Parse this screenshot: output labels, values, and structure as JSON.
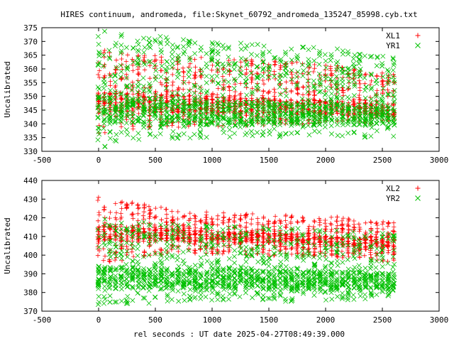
{
  "figure": {
    "title": "HIRES continuum, andromeda, file:Skynet_60792_andromeda_135247_85998.cyb.txt",
    "xlabel": "rel seconds : UT date 2025-04-27T08:49:39.000"
  },
  "colors": {
    "red": "#ff0000",
    "green": "#00c000",
    "frame": "#000000"
  },
  "chart_data": [
    {
      "type": "scatter",
      "title": "HIRES continuum, andromeda, file:Skynet_60792_andromeda_135247_85998.cyb.txt",
      "xlabel": "",
      "ylabel": "Uncalibrated",
      "xlim": [
        -500,
        3000
      ],
      "ylim": [
        330,
        375
      ],
      "xticks": [
        -500,
        0,
        500,
        1000,
        1500,
        2000,
        2500,
        3000
      ],
      "yticks": [
        330,
        335,
        340,
        345,
        350,
        355,
        360,
        365,
        370,
        375
      ],
      "legend": "top-right",
      "grid": false,
      "series": [
        {
          "name": "XL1",
          "marker": "plus",
          "color": "#ff0000",
          "data_description_values": {
            "x_start": 0,
            "x_end": 2600,
            "cluster_period": 50,
            "upper_envelope": [
              [
                0,
                367
              ],
              [
                300,
                366
              ],
              [
                1000,
                364
              ],
              [
                2000,
                362
              ],
              [
                2600,
                358
              ]
            ],
            "lower_envelope": [
              [
                0,
                336
              ],
              [
                300,
                338
              ],
              [
                1000,
                339
              ],
              [
                2000,
                340
              ],
              [
                2600,
                340
              ]
            ],
            "dense_band": [
              [
                0,
                348
              ],
              [
                1000,
                347
              ],
              [
                2600,
                345
              ]
            ]
          }
        },
        {
          "name": "YR1",
          "marker": "x",
          "color": "#00c000",
          "data_description_values": {
            "x_start": 0,
            "x_end": 2600,
            "cluster_period": 50,
            "upper_envelope": [
              [
                0,
                374
              ],
              [
                300,
                373
              ],
              [
                1000,
                370
              ],
              [
                2000,
                368
              ],
              [
                2600,
                364
              ]
            ],
            "lower_envelope": [
              [
                0,
                331
              ],
              [
                300,
                334
              ],
              [
                1000,
                335
              ],
              [
                2000,
                335
              ],
              [
                2600,
                335
              ]
            ],
            "dense_band": [
              [
                0,
                345
              ],
              [
                1000,
                344
              ],
              [
                2600,
                343
              ]
            ]
          }
        }
      ]
    },
    {
      "type": "scatter",
      "title": "",
      "xlabel": "rel seconds : UT date 2025-04-27T08:49:39.000",
      "ylabel": "Uncalibrated",
      "xlim": [
        -500,
        3000
      ],
      "ylim": [
        370,
        440
      ],
      "xticks": [
        -500,
        0,
        500,
        1000,
        1500,
        2000,
        2500,
        3000
      ],
      "yticks": [
        370,
        380,
        390,
        400,
        410,
        420,
        430,
        440
      ],
      "legend": "top-right",
      "grid": false,
      "series": [
        {
          "name": "XL2",
          "marker": "plus",
          "color": "#ff0000",
          "data_description_values": {
            "x_start": 0,
            "x_end": 2600,
            "cluster_period": 50,
            "upper_envelope": [
              [
                0,
                433
              ],
              [
                100,
                431
              ],
              [
                500,
                426
              ],
              [
                1000,
                423
              ],
              [
                2000,
                421
              ],
              [
                2600,
                418
              ]
            ],
            "lower_envelope": [
              [
                0,
                395
              ],
              [
                500,
                400
              ],
              [
                1000,
                400
              ],
              [
                2000,
                399
              ],
              [
                2600,
                396
              ]
            ],
            "dense_band": [
              [
                0,
                412
              ],
              [
                1000,
                410
              ],
              [
                2600,
                407
              ]
            ]
          }
        },
        {
          "name": "YR2",
          "marker": "x",
          "color": "#00c000",
          "data_description_values": {
            "x_start": 0,
            "x_end": 2600,
            "cluster_period": 50,
            "upper_envelope": [
              [
                0,
                420
              ],
              [
                500,
                418
              ],
              [
                1000,
                416
              ],
              [
                2000,
                414
              ],
              [
                2600,
                412
              ]
            ],
            "lower_envelope": [
              [
                0,
                371
              ],
              [
                300,
                374
              ],
              [
                1000,
                375
              ],
              [
                2000,
                375
              ],
              [
                2600,
                376
              ]
            ],
            "dense_band": [
              [
                0,
                388
              ],
              [
                1000,
                387
              ],
              [
                2600,
                386
              ]
            ]
          }
        }
      ]
    }
  ]
}
